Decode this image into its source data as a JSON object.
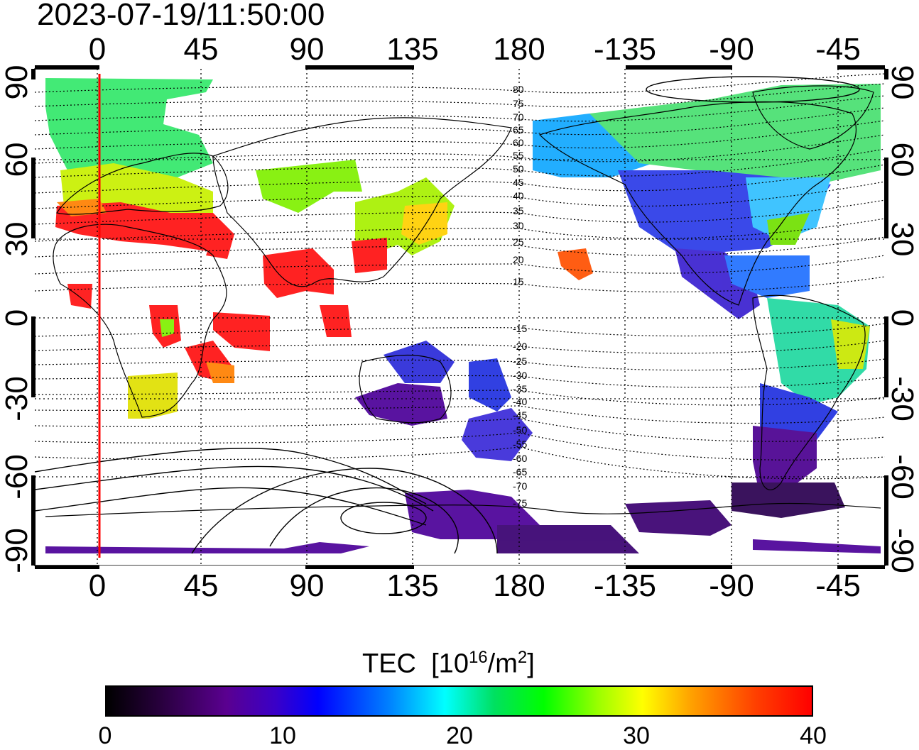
{
  "timestamp": "2023-07-19/11:50:00",
  "colors": {
    "noon_line": "#ff0000",
    "grid": "#000000",
    "background": "#ffffff"
  },
  "lon_ticks": [
    "0",
    "45",
    "90",
    "135",
    "180",
    "-135",
    "-90",
    "-45"
  ],
  "lat_ticks": [
    "90",
    "60",
    "30",
    "0",
    "-30",
    "-60",
    "-90"
  ],
  "colorbar": {
    "label": "TEC",
    "unit_base": "[10",
    "unit_exp": "16",
    "unit_mid": "/m",
    "unit_exp2": "2",
    "unit_close": "]",
    "ticks": [
      "0",
      "10",
      "20",
      "30",
      "40"
    ],
    "scale": [
      "#000000",
      "#5a0090",
      "#0000ff",
      "#00ffff",
      "#00ff00",
      "#ffff00",
      "#ff0000"
    ]
  },
  "contour_labels": [
    "80",
    "75",
    "70",
    "65",
    "60",
    "55",
    "50",
    "45",
    "40",
    "35",
    "30",
    "25",
    "20",
    "15",
    "-15",
    "-20",
    "-25",
    "-30",
    "-35",
    "-40",
    "-45",
    "-50",
    "-55",
    "-60",
    "-65",
    "-70",
    "-75"
  ]
}
